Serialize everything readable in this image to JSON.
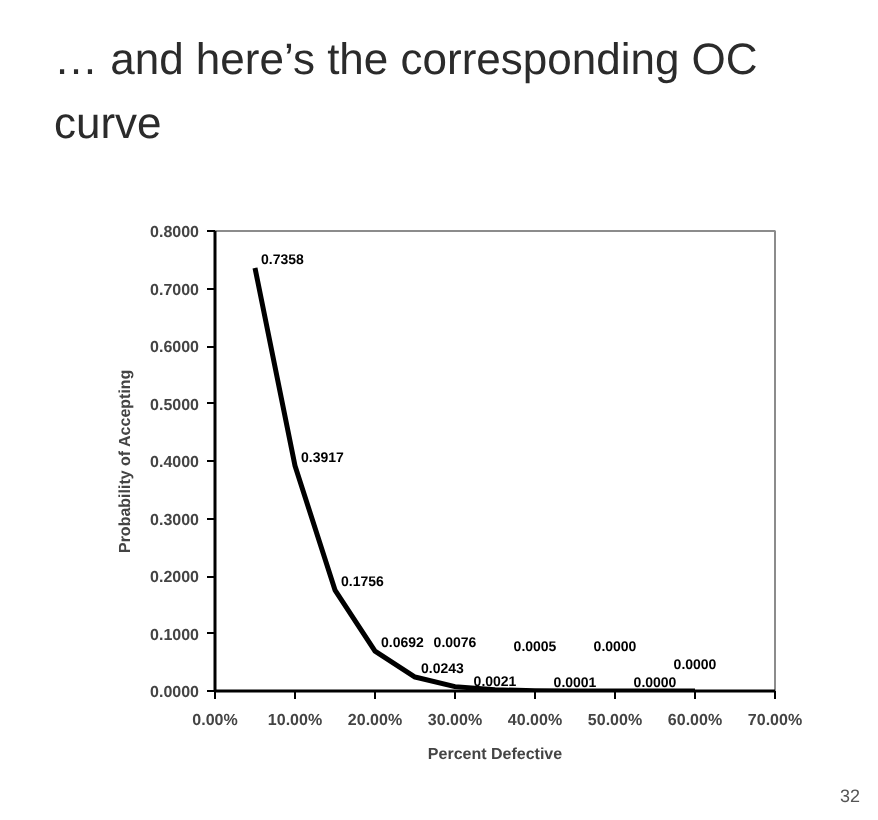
{
  "chart_data": {
    "type": "line",
    "title": "… and here’s the corresponding OC curve",
    "xlabel": "Percent Defective",
    "ylabel": "Probability of Accepting",
    "x": [
      5,
      10,
      15,
      20,
      25,
      30,
      35,
      40,
      45,
      50,
      55,
      60
    ],
    "series": [
      {
        "color": "#000000",
        "values": [
          0.7358,
          0.3917,
          0.1756,
          0.0692,
          0.0243,
          0.0076,
          0.0021,
          0.0005,
          0.0001,
          0,
          0,
          0
        ],
        "value_labels": [
          "0.7358",
          "0.3917",
          "0.1756",
          "0.0692",
          "0.0243",
          "0.0076",
          "0.0021",
          "0.0005",
          "0.0001",
          "0.0000",
          "0.0000",
          "0.0000"
        ]
      }
    ],
    "xlim": [
      0,
      70
    ],
    "xticks": [
      {
        "value": 0,
        "label": "0.00%"
      },
      {
        "value": 10,
        "label": "10.00%"
      },
      {
        "value": 20,
        "label": "20.00%"
      },
      {
        "value": 30,
        "label": "30.00%"
      },
      {
        "value": 40,
        "label": "40.00%"
      },
      {
        "value": 50,
        "label": "50.00%"
      },
      {
        "value": 60,
        "label": "60.00%"
      },
      {
        "value": 70,
        "label": "70.00%"
      }
    ],
    "ylim": [
      0,
      0.8
    ],
    "yticks": [
      {
        "value": 0,
        "label": "0.0000"
      },
      {
        "value": 0.1,
        "label": "0.1000"
      },
      {
        "value": 0.2,
        "label": "0.2000"
      },
      {
        "value": 0.3,
        "label": "0.3000"
      },
      {
        "value": 0.4,
        "label": "0.4000"
      },
      {
        "value": 0.5,
        "label": "0.5000"
      },
      {
        "value": 0.6,
        "label": "0.6000"
      },
      {
        "value": 0.7,
        "label": "0.7000"
      },
      {
        "value": 0.8,
        "label": "0.8000"
      }
    ],
    "grid": false,
    "marker": "none",
    "line_style": "solid",
    "annotations": [
      "32"
    ]
  }
}
